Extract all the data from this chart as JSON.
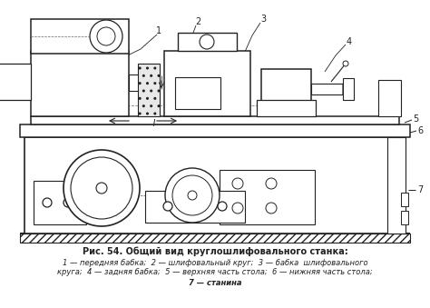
{
  "title_line1": "Рис. 54. Общий вид круглошлифовального станка:",
  "caption_line2": "1 — передняя бабка;  2 — шлифовальный круг;  3 — бабка  шлифовального",
  "caption_line3": "круга;  4 — задняя бабка;  5 — верхняя часть стола;  6 — нижняя часть стола;",
  "caption_line4": "7 — станина",
  "bg_color": "#ffffff",
  "line_color": "#222222",
  "figsize": [
    4.74,
    3.39
  ],
  "dpi": 100
}
